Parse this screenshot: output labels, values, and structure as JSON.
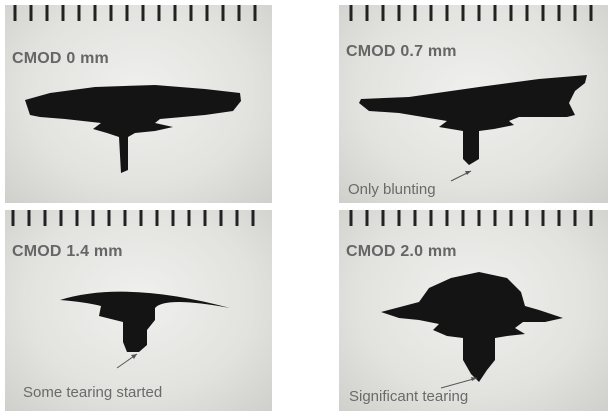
{
  "panels": [
    {
      "label": "CMOD 0 mm",
      "note": ""
    },
    {
      "label": "CMOD 0.7 mm",
      "note": "Only blunting"
    },
    {
      "label": "CMOD 1.4 mm",
      "note": "Some tearing started"
    },
    {
      "label": "CMOD 2.0 mm",
      "note": "Significant tearing"
    }
  ],
  "colors": {
    "specimen": "#141414",
    "label": "#666666",
    "background": "#e6e6e3"
  }
}
